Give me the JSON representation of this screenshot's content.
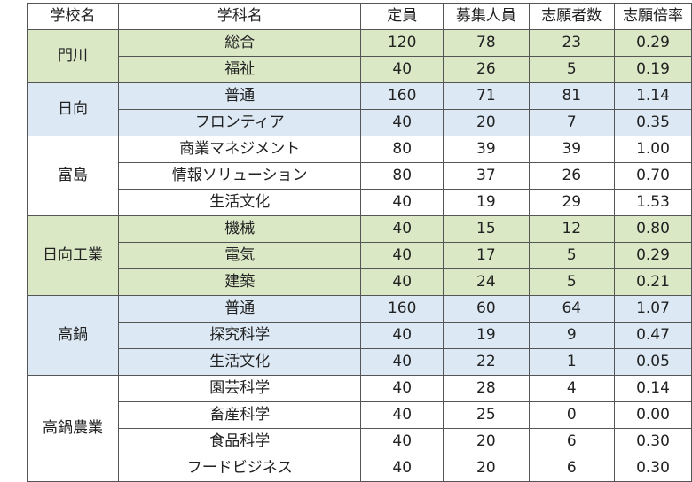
{
  "headers": {
    "school": "学校名",
    "department": "学科名",
    "capacity": "定員",
    "recruit": "募集人員",
    "applicants": "志願者数",
    "ratio": "志願倍率"
  },
  "colors": {
    "green": "#dbe8c6",
    "blue": "#dce9f5",
    "white": "#ffffff"
  },
  "schools": [
    {
      "name": "門川",
      "color": "green",
      "rows": [
        {
          "department": "総合",
          "capacity": "120",
          "recruit": "78",
          "applicants": "23",
          "ratio": "0.29"
        },
        {
          "department": "福祉",
          "capacity": "40",
          "recruit": "26",
          "applicants": "5",
          "ratio": "0.19"
        }
      ]
    },
    {
      "name": "日向",
      "color": "blue",
      "rows": [
        {
          "department": "普通",
          "capacity": "160",
          "recruit": "71",
          "applicants": "81",
          "ratio": "1.14"
        },
        {
          "department": "フロンティア",
          "capacity": "40",
          "recruit": "20",
          "applicants": "7",
          "ratio": "0.35"
        }
      ]
    },
    {
      "name": "富島",
      "color": "white",
      "rows": [
        {
          "department": "商業マネジメント",
          "capacity": "80",
          "recruit": "39",
          "applicants": "39",
          "ratio": "1.00"
        },
        {
          "department": "情報ソリューション",
          "capacity": "80",
          "recruit": "37",
          "applicants": "26",
          "ratio": "0.70"
        },
        {
          "department": "生活文化",
          "capacity": "40",
          "recruit": "19",
          "applicants": "29",
          "ratio": "1.53"
        }
      ]
    },
    {
      "name": "日向工業",
      "color": "green",
      "rows": [
        {
          "department": "機械",
          "capacity": "40",
          "recruit": "15",
          "applicants": "12",
          "ratio": "0.80"
        },
        {
          "department": "電気",
          "capacity": "40",
          "recruit": "17",
          "applicants": "5",
          "ratio": "0.29"
        },
        {
          "department": "建築",
          "capacity": "40",
          "recruit": "24",
          "applicants": "5",
          "ratio": "0.21"
        }
      ]
    },
    {
      "name": "高鍋",
      "color": "blue",
      "rows": [
        {
          "department": "普通",
          "capacity": "160",
          "recruit": "60",
          "applicants": "64",
          "ratio": "1.07"
        },
        {
          "department": "探究科学",
          "capacity": "40",
          "recruit": "19",
          "applicants": "9",
          "ratio": "0.47"
        },
        {
          "department": "生活文化",
          "capacity": "40",
          "recruit": "22",
          "applicants": "1",
          "ratio": "0.05"
        }
      ]
    },
    {
      "name": "高鍋農業",
      "color": "white",
      "rows": [
        {
          "department": "園芸科学",
          "capacity": "40",
          "recruit": "28",
          "applicants": "4",
          "ratio": "0.14"
        },
        {
          "department": "畜産科学",
          "capacity": "40",
          "recruit": "25",
          "applicants": "0",
          "ratio": "0.00"
        },
        {
          "department": "食品科学",
          "capacity": "40",
          "recruit": "20",
          "applicants": "6",
          "ratio": "0.30"
        },
        {
          "department": "フードビジネス",
          "capacity": "40",
          "recruit": "20",
          "applicants": "6",
          "ratio": "0.30"
        }
      ]
    }
  ]
}
